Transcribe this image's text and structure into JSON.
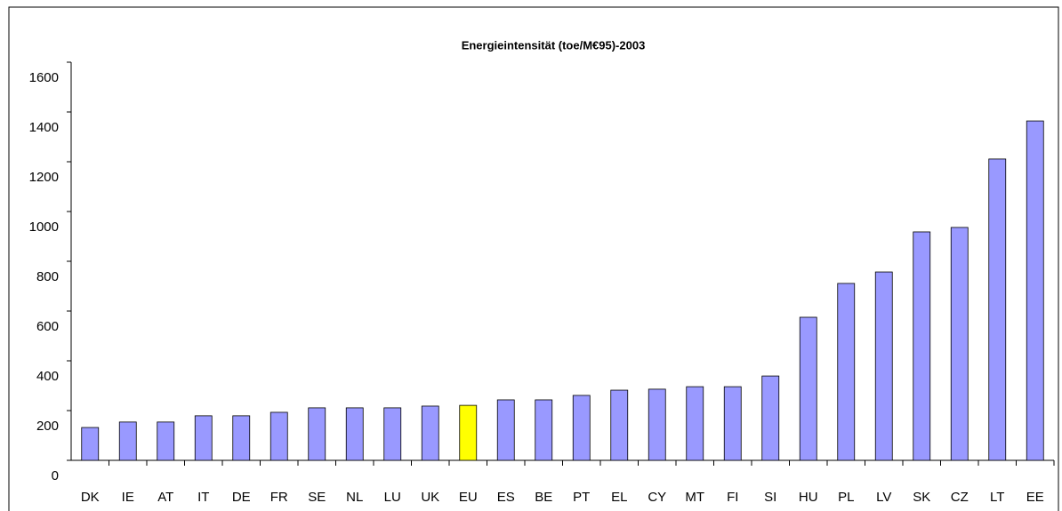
{
  "chart_data": {
    "type": "bar",
    "title": "Energieintensität (toe/M€95)-2003",
    "categories": [
      "DK",
      "IE",
      "AT",
      "IT",
      "DE",
      "FR",
      "SE",
      "NL",
      "LU",
      "UK",
      "EU",
      "ES",
      "BE",
      "PT",
      "EL",
      "CY",
      "MT",
      "FI",
      "SI",
      "HU",
      "PL",
      "LV",
      "SK",
      "CZ",
      "LT",
      "EE"
    ],
    "values": [
      132,
      154,
      154,
      179,
      179,
      193,
      211,
      211,
      211,
      218,
      221,
      243,
      243,
      261,
      282,
      286,
      296,
      296,
      339,
      575,
      711,
      757,
      918,
      936,
      1211,
      1364
    ],
    "colors": [
      "#9999ff",
      "#9999ff",
      "#9999ff",
      "#9999ff",
      "#9999ff",
      "#9999ff",
      "#9999ff",
      "#9999ff",
      "#9999ff",
      "#9999ff",
      "#ffff00",
      "#9999ff",
      "#9999ff",
      "#9999ff",
      "#9999ff",
      "#9999ff",
      "#9999ff",
      "#9999ff",
      "#9999ff",
      "#9999ff",
      "#9999ff",
      "#9999ff",
      "#9999ff",
      "#9999ff",
      "#9999ff",
      "#9999ff"
    ],
    "ylim": [
      0,
      1600
    ],
    "yticks": [
      0,
      200,
      400,
      600,
      800,
      1000,
      1200,
      1400,
      1600
    ],
    "grid": false
  }
}
